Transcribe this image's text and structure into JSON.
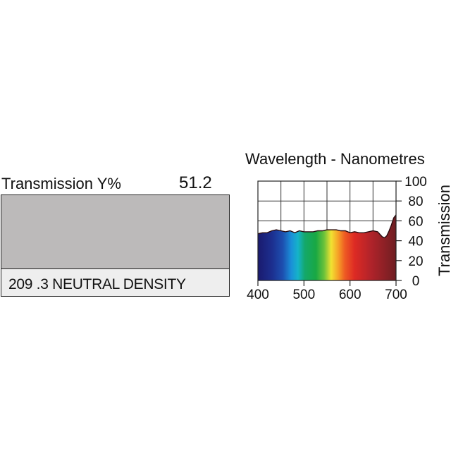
{
  "swatch": {
    "transmission_label": "Transmission Y%",
    "transmission_value": "51.2",
    "filter_name": "209 .3 NEUTRAL DENSITY",
    "color": "#bcbaba"
  },
  "chart_data": {
    "type": "area",
    "title": "Wavelength - Nanometres",
    "xlabel": "",
    "ylabel": "Transmission",
    "xlim": [
      400,
      700
    ],
    "ylim": [
      0,
      100
    ],
    "x_ticks": [
      400,
      500,
      600,
      700
    ],
    "y_ticks": [
      0,
      20,
      40,
      60,
      80,
      100
    ],
    "grid": true,
    "series": [
      {
        "name": "Transmission",
        "x": [
          400,
          410,
          420,
          430,
          440,
          450,
          460,
          470,
          480,
          490,
          500,
          510,
          520,
          530,
          540,
          550,
          560,
          570,
          580,
          590,
          600,
          610,
          620,
          630,
          640,
          650,
          660,
          670,
          675,
          680,
          685,
          690,
          695,
          700
        ],
        "y": [
          47,
          48,
          48,
          50,
          51,
          50,
          49,
          50,
          48,
          50,
          49,
          49,
          49,
          50,
          50,
          51,
          51,
          51,
          50,
          50,
          48,
          49,
          48,
          48,
          49,
          50,
          49,
          44,
          43,
          45,
          50,
          56,
          63,
          66
        ]
      }
    ]
  }
}
